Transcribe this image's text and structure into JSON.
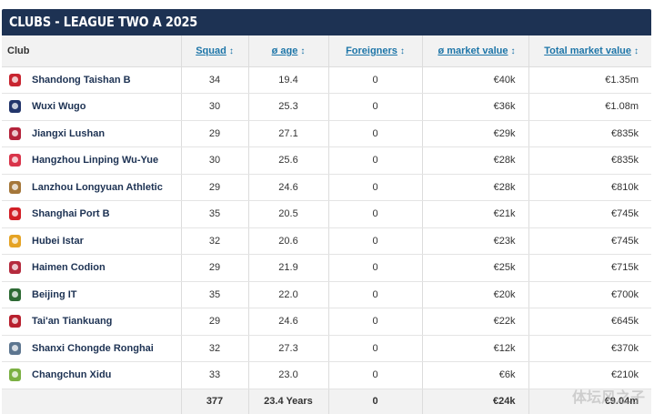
{
  "title": "CLUBS - LEAGUE TWO A 2025",
  "columns": {
    "club": "Club",
    "squad": "Squad",
    "age": "ø age",
    "foreigners": "Foreigners",
    "avg_value": "ø market value",
    "total_value": "Total market value",
    "sort_glyph": "↕"
  },
  "clubs": [
    {
      "name": "Shandong Taishan B",
      "squad": "34",
      "age": "19.4",
      "foreigners": "0",
      "avg_value": "€40k",
      "total_value": "€1.35m",
      "crest_color": "#c8242f"
    },
    {
      "name": "Wuxi Wugo",
      "squad": "30",
      "age": "25.3",
      "foreigners": "0",
      "avg_value": "€36k",
      "total_value": "€1.08m",
      "crest_color": "#22356b"
    },
    {
      "name": "Jiangxi Lushan",
      "squad": "29",
      "age": "27.1",
      "foreigners": "0",
      "avg_value": "€29k",
      "total_value": "€835k",
      "crest_color": "#b4233b"
    },
    {
      "name": "Hangzhou Linping Wu-Yue",
      "squad": "30",
      "age": "25.6",
      "foreigners": "0",
      "avg_value": "€28k",
      "total_value": "€835k",
      "crest_color": "#d9344a"
    },
    {
      "name": "Lanzhou Longyuan Athletic",
      "squad": "29",
      "age": "24.6",
      "foreigners": "0",
      "avg_value": "€28k",
      "total_value": "€810k",
      "crest_color": "#a5773a"
    },
    {
      "name": "Shanghai Port B",
      "squad": "35",
      "age": "20.5",
      "foreigners": "0",
      "avg_value": "€21k",
      "total_value": "€745k",
      "crest_color": "#d21f26"
    },
    {
      "name": "Hubei Istar",
      "squad": "32",
      "age": "20.6",
      "foreigners": "0",
      "avg_value": "€23k",
      "total_value": "€745k",
      "crest_color": "#e5a324"
    },
    {
      "name": "Haimen Codion",
      "squad": "29",
      "age": "21.9",
      "foreigners": "0",
      "avg_value": "€25k",
      "total_value": "€715k",
      "crest_color": "#b52b3e"
    },
    {
      "name": "Beijing IT",
      "squad": "35",
      "age": "22.0",
      "foreigners": "0",
      "avg_value": "€20k",
      "total_value": "€700k",
      "crest_color": "#2d6a34"
    },
    {
      "name": "Tai'an Tiankuang",
      "squad": "29",
      "age": "24.6",
      "foreigners": "0",
      "avg_value": "€22k",
      "total_value": "€645k",
      "crest_color": "#b8202e"
    },
    {
      "name": "Shanxi Chongde Ronghai",
      "squad": "32",
      "age": "27.3",
      "foreigners": "0",
      "avg_value": "€12k",
      "total_value": "€370k",
      "crest_color": "#5d7690"
    },
    {
      "name": "Changchun Xidu",
      "squad": "33",
      "age": "23.0",
      "foreigners": "0",
      "avg_value": "€6k",
      "total_value": "€210k",
      "crest_color": "#7bb043"
    }
  ],
  "totals": {
    "squad": "377",
    "age": "23.4 Years",
    "foreigners": "0",
    "avg_value": "€24k",
    "total_value": "€9.04m"
  },
  "watermark": "体坛风之子"
}
